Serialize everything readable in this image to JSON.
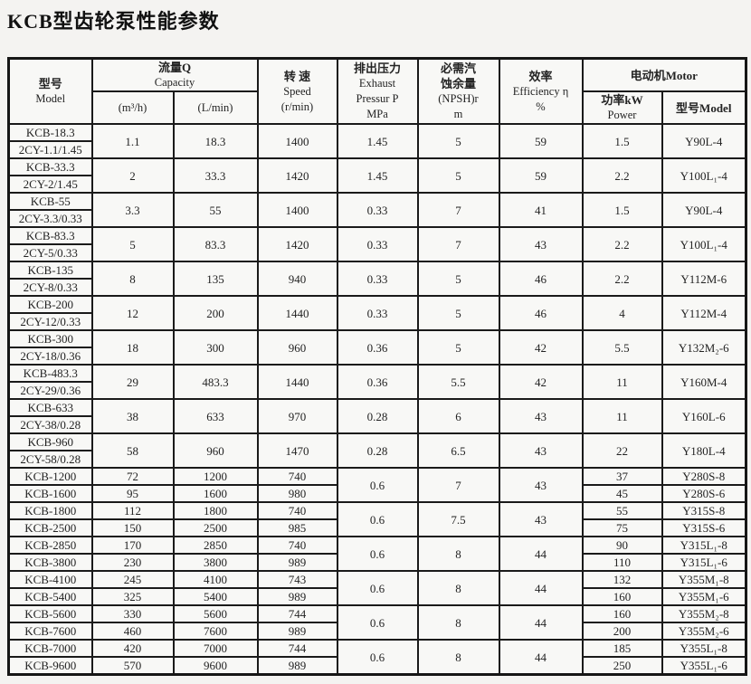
{
  "page": {
    "title": "KCB型齿轮泵性能参数"
  },
  "table": {
    "header": {
      "model_zh": "型号",
      "model_en": "Model",
      "capacity_zh": "流量Q",
      "capacity_en": "Capacity",
      "m3h": "(m³/h)",
      "lmin": "(L/min)",
      "speed_zh": "转 速",
      "speed_en": "Speed",
      "speed_unit": "(r/min)",
      "exhaust_zh": "排出压力",
      "exhaust_en1": "Exhaust",
      "exhaust_en2": "Pressur P",
      "exhaust_en3": "MPa",
      "npsh_zh1": "必需汽",
      "npsh_zh2": "蚀余量",
      "npsh_en": "(NPSH)r",
      "npsh_unit": "m",
      "eff_zh": "效率",
      "eff_en": "Efficiency η",
      "eff_unit": "%",
      "motor_zh": "电动机Motor",
      "power_zh": "功率kW",
      "power_en": "Power",
      "motor_model": "型号Model"
    },
    "paired_rows": [
      {
        "model1": "KCB-18.3",
        "model2": "2CY-1.1/1.45",
        "m3h": "1.1",
        "lmin": "18.3",
        "speed": "1400",
        "exhaust": "1.45",
        "npsh": "5",
        "eff": "59",
        "power": "1.5",
        "motor": "Y90L-4"
      },
      {
        "model1": "KCB-33.3",
        "model2": "2CY-2/1.45",
        "m3h": "2",
        "lmin": "33.3",
        "speed": "1420",
        "exhaust": "1.45",
        "npsh": "5",
        "eff": "59",
        "power": "2.2",
        "motor": "Y100L₁-4"
      },
      {
        "model1": "KCB-55",
        "model2": "2CY-3.3/0.33",
        "m3h": "3.3",
        "lmin": "55",
        "speed": "1400",
        "exhaust": "0.33",
        "npsh": "7",
        "eff": "41",
        "power": "1.5",
        "motor": "Y90L-4"
      },
      {
        "model1": "KCB-83.3",
        "model2": "2CY-5/0.33",
        "m3h": "5",
        "lmin": "83.3",
        "speed": "1420",
        "exhaust": "0.33",
        "npsh": "7",
        "eff": "43",
        "power": "2.2",
        "motor": "Y100L₁-4"
      },
      {
        "model1": "KCB-135",
        "model2": "2CY-8/0.33",
        "m3h": "8",
        "lmin": "135",
        "speed": "940",
        "exhaust": "0.33",
        "npsh": "5",
        "eff": "46",
        "power": "2.2",
        "motor": "Y112M-6"
      },
      {
        "model1": "KCB-200",
        "model2": "2CY-12/0.33",
        "m3h": "12",
        "lmin": "200",
        "speed": "1440",
        "exhaust": "0.33",
        "npsh": "5",
        "eff": "46",
        "power": "4",
        "motor": "Y112M-4"
      },
      {
        "model1": "KCB-300",
        "model2": "2CY-18/0.36",
        "m3h": "18",
        "lmin": "300",
        "speed": "960",
        "exhaust": "0.36",
        "npsh": "5",
        "eff": "42",
        "power": "5.5",
        "motor": "Y132M₂-6"
      },
      {
        "model1": "KCB-483.3",
        "model2": "2CY-29/0.36",
        "m3h": "29",
        "lmin": "483.3",
        "speed": "1440",
        "exhaust": "0.36",
        "npsh": "5.5",
        "eff": "42",
        "power": "11",
        "motor": "Y160M-4"
      },
      {
        "model1": "KCB-633",
        "model2": "2CY-38/0.28",
        "m3h": "38",
        "lmin": "633",
        "speed": "970",
        "exhaust": "0.28",
        "npsh": "6",
        "eff": "43",
        "power": "11",
        "motor": "Y160L-6"
      },
      {
        "model1": "KCB-960",
        "model2": "2CY-58/0.28",
        "m3h": "58",
        "lmin": "960",
        "speed": "1470",
        "exhaust": "0.28",
        "npsh": "6.5",
        "eff": "43",
        "power": "22",
        "motor": "Y180L-4"
      }
    ],
    "group_rows": [
      {
        "exhaust": "0.6",
        "npsh": "7",
        "eff": "43",
        "rows": [
          {
            "model": "KCB-1200",
            "m3h": "72",
            "lmin": "1200",
            "speed": "740",
            "power": "37",
            "motor": "Y280S-8"
          },
          {
            "model": "KCB-1600",
            "m3h": "95",
            "lmin": "1600",
            "speed": "980",
            "power": "45",
            "motor": "Y280S-6"
          }
        ]
      },
      {
        "exhaust": "0.6",
        "npsh": "7.5",
        "eff": "43",
        "rows": [
          {
            "model": "KCB-1800",
            "m3h": "112",
            "lmin": "1800",
            "speed": "740",
            "power": "55",
            "motor": "Y315S-8"
          },
          {
            "model": "KCB-2500",
            "m3h": "150",
            "lmin": "2500",
            "speed": "985",
            "power": "75",
            "motor": "Y315S-6"
          }
        ]
      },
      {
        "exhaust": "0.6",
        "npsh": "8",
        "eff": "44",
        "rows": [
          {
            "model": "KCB-2850",
            "m3h": "170",
            "lmin": "2850",
            "speed": "740",
            "power": "90",
            "motor": "Y315L₁-8"
          },
          {
            "model": "KCB-3800",
            "m3h": "230",
            "lmin": "3800",
            "speed": "989",
            "power": "110",
            "motor": "Y315L₁-6"
          }
        ]
      },
      {
        "exhaust": "0.6",
        "npsh": "8",
        "eff": "44",
        "rows": [
          {
            "model": "KCB-4100",
            "m3h": "245",
            "lmin": "4100",
            "speed": "743",
            "power": "132",
            "motor": "Y355M₁-8"
          },
          {
            "model": "KCB-5400",
            "m3h": "325",
            "lmin": "5400",
            "speed": "989",
            "power": "160",
            "motor": "Y355M₁-6"
          }
        ]
      },
      {
        "exhaust": "0.6",
        "npsh": "8",
        "eff": "44",
        "rows": [
          {
            "model": "KCB-5600",
            "m3h": "330",
            "lmin": "5600",
            "speed": "744",
            "power": "160",
            "motor": "Y355M₂-8"
          },
          {
            "model": "KCB-7600",
            "m3h": "460",
            "lmin": "7600",
            "speed": "989",
            "power": "200",
            "motor": "Y355M₂-6"
          }
        ]
      },
      {
        "exhaust": "0.6",
        "npsh": "8",
        "eff": "44",
        "rows": [
          {
            "model": "KCB-7000",
            "m3h": "420",
            "lmin": "7000",
            "speed": "744",
            "power": "185",
            "motor": "Y355L₁-8"
          },
          {
            "model": "KCB-9600",
            "m3h": "570",
            "lmin": "9600",
            "speed": "989",
            "power": "250",
            "motor": "Y355L₁-6"
          }
        ]
      }
    ]
  }
}
